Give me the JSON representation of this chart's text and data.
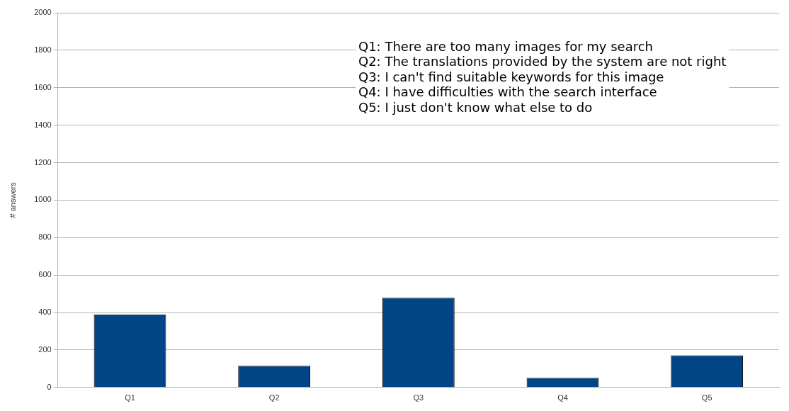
{
  "chart_data": {
    "type": "bar",
    "ylabel": "# answers",
    "categories": [
      "Q1",
      "Q2",
      "Q3",
      "Q4",
      "Q5"
    ],
    "values": [
      390,
      116,
      479,
      51,
      171
    ],
    "color": "#004586",
    "ylim": [
      0,
      2000
    ],
    "yticks": [
      0,
      200,
      400,
      600,
      800,
      1000,
      1200,
      1400,
      1600,
      1800,
      2000
    ],
    "grid": "y",
    "legend": false,
    "annotations": [
      "Q1: There are too many images for my search",
      "Q2: The translations provided by the system are not right",
      "Q3: I can't find suitable keywords for this image",
      "Q4: I have difficulties with the search interface",
      "Q5: I just don't know what else to do"
    ]
  }
}
